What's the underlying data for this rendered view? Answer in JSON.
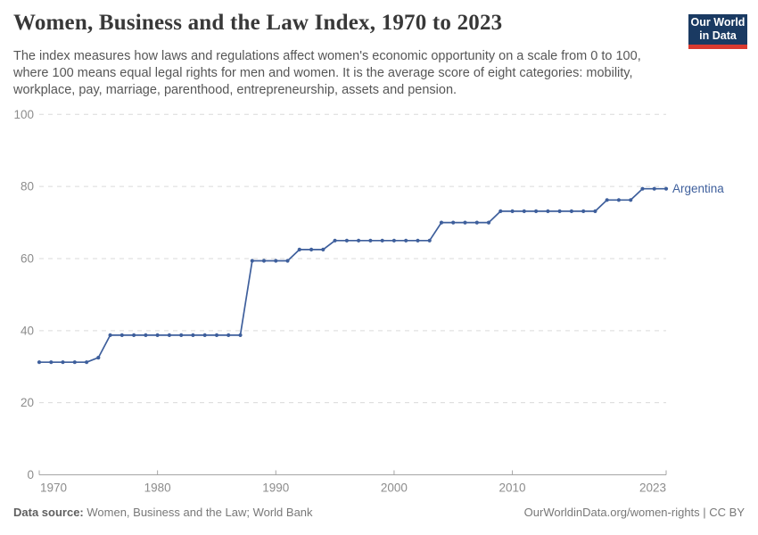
{
  "header": {
    "logo": {
      "line1": "Our World",
      "line2": "in Data",
      "bg_color": "#1a3a62",
      "accent_color": "#d93a2f"
    }
  },
  "chart_data": {
    "type": "line",
    "title": "Women, Business and the Law Index, 1970 to 2023",
    "subtitle": "The index measures how laws and regulations affect women's economic opportunity on a scale from 0 to 100, where 100 means equal legal rights for men and women. It is the average score of eight categories: mobility, workplace, pay, marriage, parenthood, entrepreneurship, assets and pension.",
    "xlabel": "",
    "ylabel": "",
    "xlim": [
      1970,
      2023
    ],
    "ylim": [
      0,
      100
    ],
    "yticks": [
      0,
      20,
      40,
      60,
      80,
      100
    ],
    "xticks": [
      1970,
      1980,
      1990,
      2000,
      2010,
      2023
    ],
    "grid": "horizontal-dashed",
    "legend_position": "end-of-line-label",
    "series": [
      {
        "name": "Argentina",
        "color": "#3e5f9c",
        "points": [
          [
            1970,
            31.25
          ],
          [
            1971,
            31.25
          ],
          [
            1972,
            31.25
          ],
          [
            1973,
            31.25
          ],
          [
            1974,
            31.25
          ],
          [
            1975,
            32.5
          ],
          [
            1976,
            38.75
          ],
          [
            1977,
            38.75
          ],
          [
            1978,
            38.75
          ],
          [
            1979,
            38.75
          ],
          [
            1980,
            38.75
          ],
          [
            1981,
            38.75
          ],
          [
            1982,
            38.75
          ],
          [
            1983,
            38.75
          ],
          [
            1984,
            38.75
          ],
          [
            1985,
            38.75
          ],
          [
            1986,
            38.75
          ],
          [
            1987,
            38.75
          ],
          [
            1988,
            59.375
          ],
          [
            1989,
            59.375
          ],
          [
            1990,
            59.375
          ],
          [
            1991,
            59.375
          ],
          [
            1992,
            62.5
          ],
          [
            1993,
            62.5
          ],
          [
            1994,
            62.5
          ],
          [
            1995,
            65
          ],
          [
            1996,
            65
          ],
          [
            1997,
            65
          ],
          [
            1998,
            65
          ],
          [
            1999,
            65
          ],
          [
            2000,
            65
          ],
          [
            2001,
            65
          ],
          [
            2002,
            65
          ],
          [
            2003,
            65
          ],
          [
            2004,
            70
          ],
          [
            2005,
            70
          ],
          [
            2006,
            70
          ],
          [
            2007,
            70
          ],
          [
            2008,
            70
          ],
          [
            2009,
            73.125
          ],
          [
            2010,
            73.125
          ],
          [
            2011,
            73.125
          ],
          [
            2012,
            73.125
          ],
          [
            2013,
            73.125
          ],
          [
            2014,
            73.125
          ],
          [
            2015,
            73.125
          ],
          [
            2016,
            73.125
          ],
          [
            2017,
            73.125
          ],
          [
            2018,
            76.25
          ],
          [
            2019,
            76.25
          ],
          [
            2020,
            76.25
          ],
          [
            2021,
            79.375
          ],
          [
            2022,
            79.375
          ],
          [
            2023,
            79.375
          ]
        ]
      }
    ],
    "style": {
      "axis_text_color": "#8c8c8c",
      "gridline_color": "#dadada",
      "axis_line_color": "#a5a5a5"
    }
  },
  "footer": {
    "datasource_label": "Data source:",
    "datasource_value": "Women, Business and the Law; World Bank",
    "note": "OurWorldinData.org/women-rights | CC BY"
  }
}
